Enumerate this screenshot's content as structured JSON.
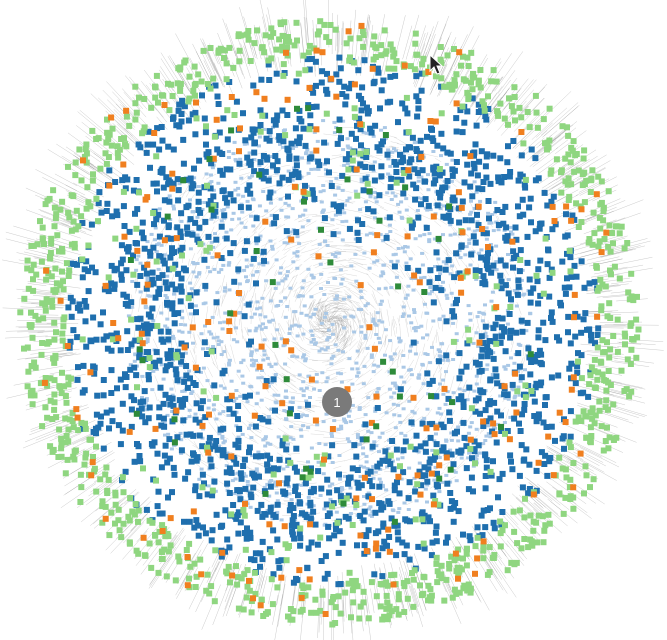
{
  "graph": {
    "root_label": "1",
    "colors": {
      "background": "#ffffff",
      "edge": "#6b6b6b",
      "inner_node": "#aac8e6",
      "mid_node": "#1f6fae",
      "outer_node": "#8fd680",
      "accent_orange": "#f07f1f",
      "accent_green": "#2e8b3a",
      "root_node": "#7a7a7a"
    }
  },
  "cursor": {
    "icon": "mouse-pointer-icon"
  }
}
